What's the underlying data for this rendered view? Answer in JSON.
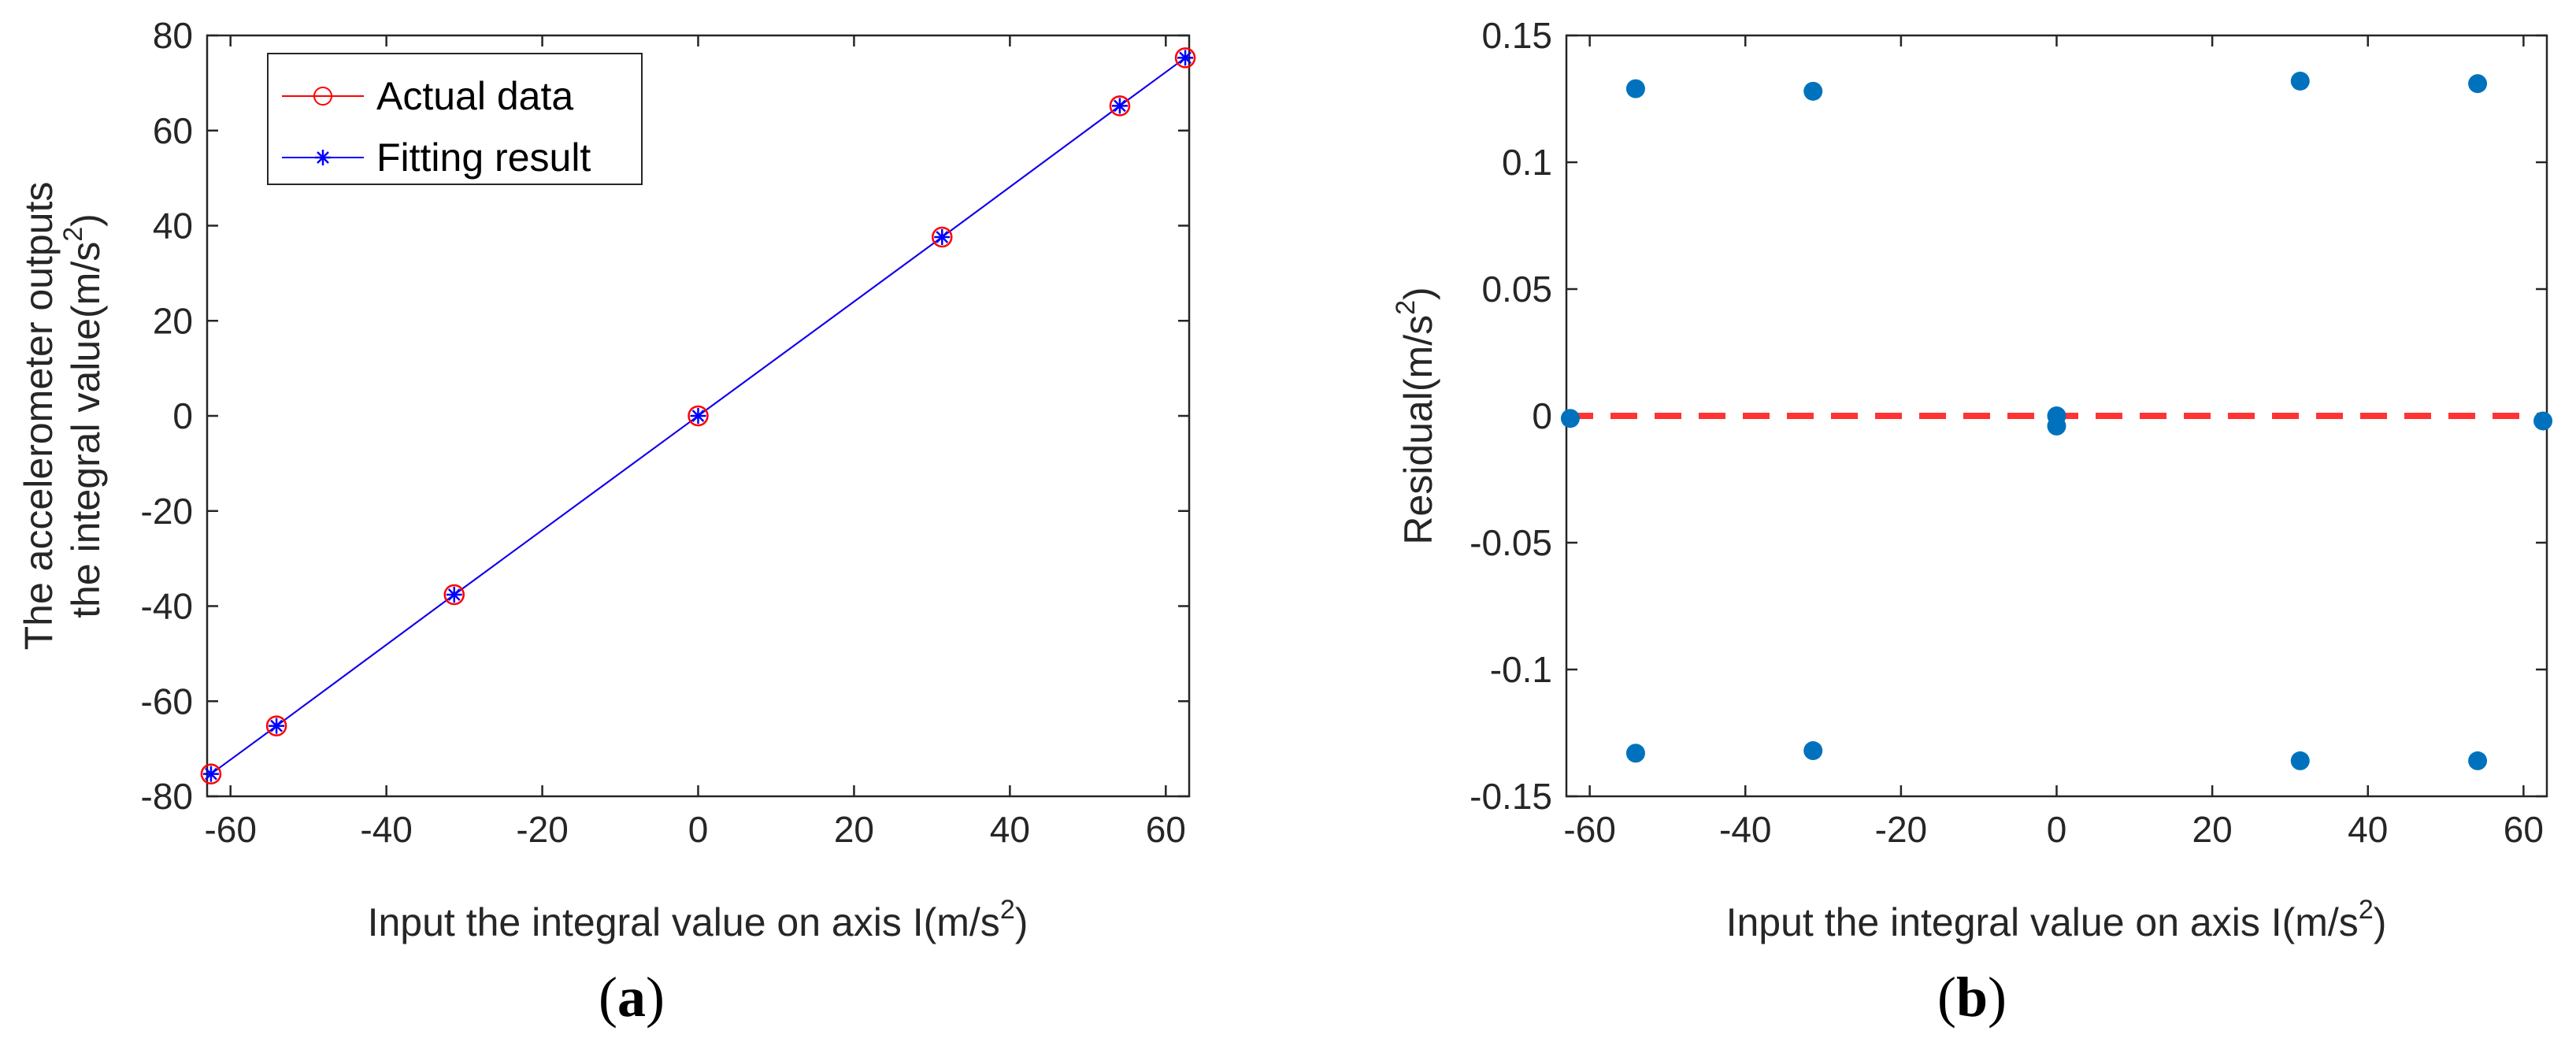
{
  "chart_data": [
    {
      "type": "line",
      "caption": {
        "open": "(",
        "letter": "a",
        "close": ")"
      },
      "xlabel": {
        "text": "Input the integral value on axis I(m/s",
        "sup": "2",
        "tail": ")"
      },
      "ylabel_line1": {
        "text": "The accelerometer outputs",
        "sup": "",
        "tail": ""
      },
      "ylabel_line2": {
        "text": "the integral value(m/s",
        "sup": "2",
        "tail": ")"
      },
      "xlim": [
        -63,
        63
      ],
      "ylim": [
        -80,
        80
      ],
      "xticks": [
        -60,
        -40,
        -20,
        0,
        20,
        40,
        60
      ],
      "yticks": [
        -80,
        -60,
        -40,
        -20,
        0,
        20,
        40,
        60,
        80
      ],
      "x": [
        -62.5,
        -54.1,
        -31.3,
        0,
        31.3,
        54.1,
        62.5
      ],
      "series": [
        {
          "name": "Actual data",
          "color": "#ff0000",
          "marker": "circle",
          "values": [
            -75.3,
            -65.2,
            -37.6,
            0,
            37.6,
            65.2,
            75.3
          ]
        },
        {
          "name": "Fitting result",
          "color": "#0000ff",
          "marker": "asterisk",
          "values": [
            -75.3,
            -65.2,
            -37.6,
            0,
            37.6,
            65.2,
            75.3
          ]
        }
      ],
      "legend_position": "top-left"
    },
    {
      "type": "scatter",
      "caption": {
        "open": "(",
        "letter": "b",
        "close": ")"
      },
      "xlabel": {
        "text": "Input the integral value on axis I(m/s",
        "sup": "2",
        "tail": ")"
      },
      "ylabel": {
        "text": "Residual(m/s",
        "sup": "2",
        "tail": ")"
      },
      "xlim": [
        -63,
        63
      ],
      "ylim": [
        -0.15,
        0.15
      ],
      "xticks": [
        -60,
        -40,
        -20,
        0,
        20,
        40,
        60
      ],
      "yticks": [
        -0.15,
        -0.1,
        -0.05,
        0,
        0.05,
        0.1,
        0.15
      ],
      "ytick_labels": [
        "-0.15",
        "-0.1",
        "-0.05",
        "0",
        "0.05",
        "0.1",
        "0.15"
      ],
      "points": [
        {
          "x": -62.5,
          "y": -0.001
        },
        {
          "x": -54.1,
          "y": 0.129
        },
        {
          "x": -54.1,
          "y": -0.133
        },
        {
          "x": -31.3,
          "y": 0.128
        },
        {
          "x": -31.3,
          "y": -0.132
        },
        {
          "x": 0,
          "y": 0.0
        },
        {
          "x": 0,
          "y": -0.004
        },
        {
          "x": 31.3,
          "y": 0.132
        },
        {
          "x": 31.3,
          "y": -0.136
        },
        {
          "x": 54.1,
          "y": 0.131
        },
        {
          "x": 54.1,
          "y": -0.136
        },
        {
          "x": 62.5,
          "y": -0.002
        }
      ],
      "point_color": "#0072bd",
      "reference_line": {
        "y": 0,
        "color": "#ff3333",
        "style": "dashed"
      }
    }
  ]
}
